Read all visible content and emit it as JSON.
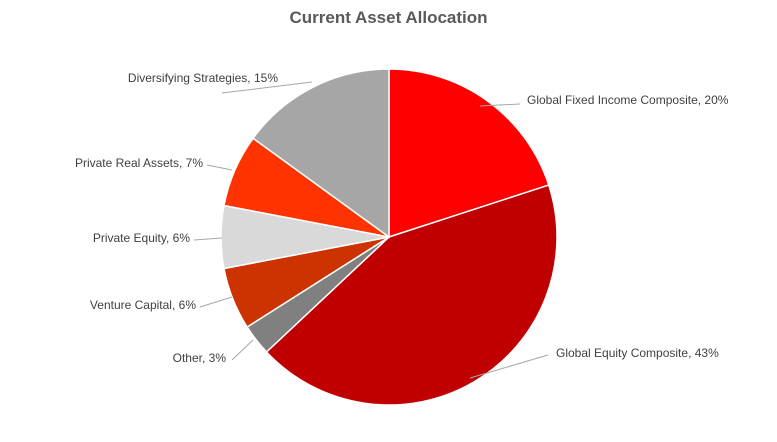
{
  "chart_data": {
    "type": "pie",
    "title": "Current Asset Allocation",
    "slices": [
      {
        "label": "Global Fixed Income Composite",
        "value": 20,
        "display": "Global Fixed Income Composite,  20%",
        "color": "#FF0000"
      },
      {
        "label": "Global Equity Composite",
        "value": 43,
        "display": "Global Equity Composite, 43%",
        "color": "#C00000"
      },
      {
        "label": "Other",
        "value": 3,
        "display": "Other, 3%",
        "color": "#808080"
      },
      {
        "label": "Venture Capital",
        "value": 6,
        "display": "Venture Capital, 6%",
        "color": "#CC3300"
      },
      {
        "label": "Private Equity",
        "value": 6,
        "display": "Private Equity, 6%",
        "color": "#D9D9D9"
      },
      {
        "label": "Private Real Assets",
        "value": 7,
        "display": "Private Real Assets, 7%",
        "color": "#FF3300"
      },
      {
        "label": "Diversifying Strategies",
        "value": 15,
        "display": "Diversifying Strategies, 15%",
        "color": "#A6A6A6"
      }
    ],
    "start_angle_deg": 0,
    "direction": "clockwise",
    "legend": "none (data labels with leader lines)"
  }
}
